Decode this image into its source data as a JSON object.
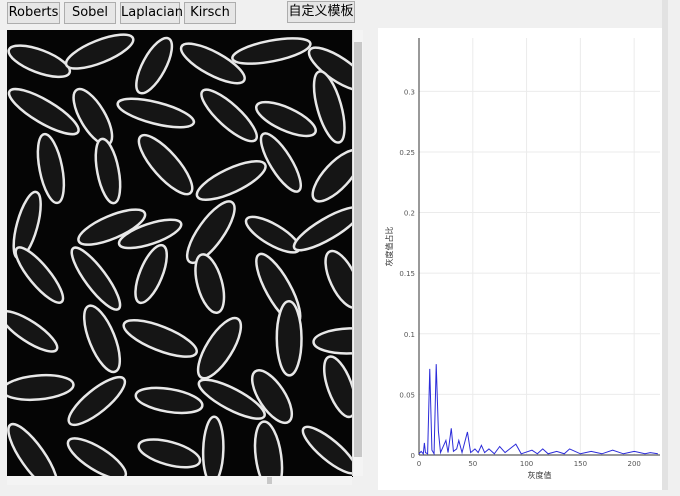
{
  "toolbar": {
    "buttons": [
      "Roberts",
      "Sobel",
      "Laplacian",
      "Kirsch"
    ],
    "custom_button": "自定义模板"
  },
  "chart_data": {
    "type": "line",
    "xlabel": "灰度值",
    "ylabel": "灰度值占比",
    "x": [
      0,
      2,
      4,
      5,
      6,
      8,
      10,
      12,
      14,
      16,
      18,
      20,
      22,
      25,
      27,
      30,
      32,
      35,
      37,
      40,
      45,
      48,
      52,
      55,
      58,
      61,
      65,
      70,
      75,
      80,
      90,
      95,
      105,
      110,
      115,
      120,
      128,
      135,
      140,
      150,
      160,
      170,
      180,
      190,
      200,
      210,
      215,
      222
    ],
    "series": [
      {
        "name": "灰度值占比",
        "color": "#2b2bd9",
        "values": [
          0.001,
          0.003,
          0.001,
          0.01,
          0.002,
          0.001,
          0.071,
          0.004,
          0.001,
          0.075,
          0.02,
          0.002,
          0.006,
          0.012,
          0.002,
          0.022,
          0.003,
          0.005,
          0.012,
          0.002,
          0.019,
          0.002,
          0.005,
          0.002,
          0.008,
          0.002,
          0.005,
          0.001,
          0.007,
          0.002,
          0.009,
          0.001,
          0.004,
          0.001,
          0.005,
          0.001,
          0.003,
          0.001,
          0.005,
          0.001,
          0.003,
          0.001,
          0.004,
          0.001,
          0.003,
          0.001,
          0.002,
          0.001
        ]
      }
    ],
    "xlim": [
      0,
      224
    ],
    "ylim": [
      0,
      0.344
    ],
    "xticks": [
      0,
      50,
      100,
      150,
      200
    ],
    "yticks": [
      0,
      0.05,
      0.1,
      0.15,
      0.2,
      0.25,
      0.3
    ],
    "grid": true
  }
}
